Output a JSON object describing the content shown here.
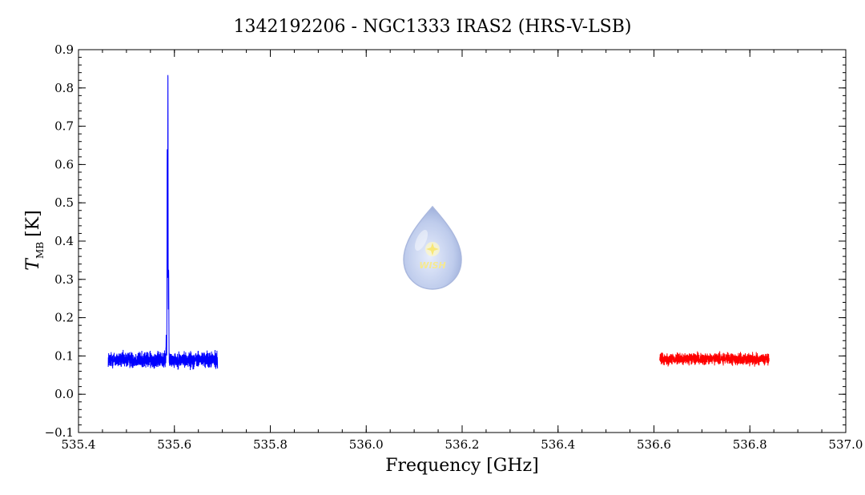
{
  "chart_data": {
    "type": "line",
    "title": "1342192206 - NGC1333 IRAS2 (HRS-V-LSB)",
    "xlabel": "Frequency [GHz]",
    "ylabel": {
      "symbol": "T",
      "subscript": "MB",
      "unit": "[K]"
    },
    "xlim": [
      535.4,
      537.0
    ],
    "ylim": [
      -0.1,
      0.9
    ],
    "x_ticks": [
      535.4,
      535.6,
      535.8,
      536.0,
      536.2,
      536.4,
      536.6,
      536.8,
      537.0
    ],
    "x_tick_labels": [
      "535.4",
      "535.6",
      "535.8",
      "536.0",
      "536.2",
      "536.4",
      "536.6",
      "536.8",
      "537.0"
    ],
    "y_ticks": [
      -0.1,
      0.0,
      0.1,
      0.2,
      0.3,
      0.4,
      0.5,
      0.6,
      0.7,
      0.8,
      0.9
    ],
    "y_tick_labels": [
      "−0.1",
      "0.0",
      "0.1",
      "0.2",
      "0.3",
      "0.4",
      "0.5",
      "0.6",
      "0.7",
      "0.8",
      "0.9"
    ],
    "grid": false,
    "series": [
      {
        "color": "#0000ff",
        "x_range": [
          535.462,
          535.69
        ],
        "baseline": 0.09,
        "noise_amplitude": 0.03,
        "peaks": [
          {
            "x": 535.5865,
            "y": 0.84
          },
          {
            "x": 535.585,
            "y": 0.65
          },
          {
            "x": 535.588,
            "y": 0.335
          },
          {
            "x": 535.583,
            "y": 0.16
          }
        ]
      },
      {
        "color": "#ff0000",
        "x_range": [
          536.612,
          536.84
        ],
        "baseline": 0.092,
        "noise_amplitude": 0.022,
        "peaks": []
      }
    ]
  },
  "logo": {
    "text": "WISH",
    "color": "#9fb3e0"
  }
}
